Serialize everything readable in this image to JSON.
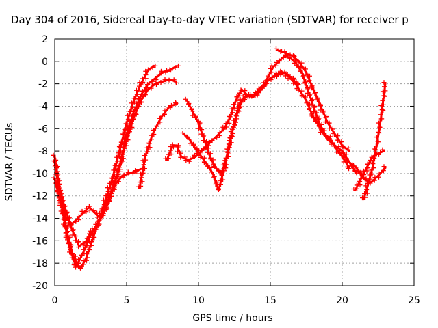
{
  "chart_data": {
    "type": "scatter",
    "title": "Day 304 of 2016, Sidereal Day-to-day VTEC variation (SDTVAR) for receiver p",
    "xlabel": "GPS time / hours",
    "ylabel": "SDTVAR / TECUs",
    "xlim": [
      0,
      25
    ],
    "ylim": [
      -20,
      2
    ],
    "xticks": [
      0,
      5,
      10,
      15,
      20,
      25
    ],
    "yticks": [
      -20,
      -18,
      -16,
      -14,
      -12,
      -10,
      -8,
      -6,
      -4,
      -2,
      0,
      2
    ],
    "grid": true,
    "marker": "plus",
    "color": "#ff0000",
    "series": [
      {
        "x": [
          0,
          0.3,
          0.6,
          0.9,
          1.2,
          1.5,
          1.8,
          2.2,
          2.6,
          3.0,
          3.5,
          4.0,
          4.5,
          5.0,
          5.5,
          6.0,
          6.5,
          6.9
        ],
        "values": [
          -8.5,
          -11.0,
          -13.5,
          -15.5,
          -17.0,
          -18.0,
          -18.5,
          -17.5,
          -16.0,
          -14.5,
          -12.5,
          -10.5,
          -8.0,
          -5.5,
          -3.5,
          -2.0,
          -0.8,
          -0.4
        ]
      },
      {
        "x": [
          0,
          0.4,
          0.8,
          1.2,
          1.6,
          2.0,
          2.4,
          2.8,
          3.2,
          3.6,
          4.0,
          4.5,
          5.0,
          5.5,
          6.0,
          6.5,
          7.0,
          7.5,
          8.0,
          8.4
        ],
        "values": [
          -10.5,
          -12.5,
          -14.0,
          -14.5,
          -14.0,
          -13.5,
          -13.0,
          -13.5,
          -14.0,
          -13.0,
          -11.5,
          -9.5,
          -7.0,
          -5.0,
          -3.5,
          -2.5,
          -2.0,
          -1.8,
          -1.6,
          -1.8
        ]
      },
      {
        "x": [
          0,
          0.5,
          1.0,
          1.5,
          2.0,
          2.5,
          3.0,
          3.5,
          4.0,
          4.5,
          5.0,
          5.5,
          6.0,
          6.5,
          7.0,
          7.5,
          8.0,
          8.5
        ],
        "values": [
          -9.0,
          -13.0,
          -16.5,
          -18.3,
          -17.0,
          -15.5,
          -14.5,
          -13.0,
          -11.5,
          -9.5,
          -6.5,
          -4.5,
          -3.0,
          -2.0,
          -1.5,
          -1.0,
          -0.8,
          -0.4
        ]
      },
      {
        "x": [
          0.2,
          0.7,
          1.2,
          1.7,
          2.2,
          2.7,
          3.2,
          3.7,
          4.2,
          4.7,
          5.2,
          5.6,
          6.0
        ],
        "values": [
          -11.0,
          -13.0,
          -15.0,
          -16.5,
          -16.0,
          -15.0,
          -14.0,
          -12.5,
          -11.0,
          -10.2,
          -10.0,
          -9.8,
          -9.6
        ]
      },
      {
        "x": [
          5.9,
          6.3,
          6.8,
          7.4,
          8.0,
          8.5
        ],
        "values": [
          -11.3,
          -8.5,
          -6.5,
          -5.0,
          -4.0,
          -3.8
        ]
      },
      {
        "x": [
          7.8,
          8.2,
          8.5,
          8.8,
          9.3,
          9.8,
          10.2,
          10.6,
          11.0,
          11.4,
          11.8,
          12.2,
          12.6,
          13.0,
          13.4,
          13.8,
          14.2,
          14.6,
          15.0,
          15.4,
          15.8,
          16.2,
          16.6,
          17.0
        ],
        "values": [
          -8.8,
          -7.5,
          -7.5,
          -8.5,
          -8.8,
          -8.5,
          -8.0,
          -7.5,
          -7.0,
          -6.5,
          -6.0,
          -5.0,
          -3.5,
          -2.5,
          -3.0,
          -3.2,
          -2.5,
          -2.0,
          -1.5,
          -1.2,
          -1.0,
          -1.2,
          -1.8,
          -2.0
        ]
      },
      {
        "x": [
          9.2,
          9.6,
          10.0,
          10.4,
          10.8,
          11.2,
          11.6,
          12.0,
          12.4,
          12.8,
          13.2,
          13.6,
          14.0,
          14.4,
          14.8,
          15.2,
          15.6,
          16.0,
          16.4,
          16.8,
          17.2,
          17.6,
          18.0,
          18.4,
          18.8,
          19.2,
          19.6,
          20.0,
          20.5
        ],
        "values": [
          -3.5,
          -4.5,
          -5.5,
          -7.0,
          -8.5,
          -9.5,
          -10.0,
          -8.5,
          -6.0,
          -4.0,
          -3.2,
          -3.0,
          -3.0,
          -2.5,
          -1.5,
          -0.5,
          0,
          0.5,
          0.3,
          -0.2,
          -1.0,
          -2.5,
          -4.0,
          -5.5,
          -6.5,
          -7.0,
          -7.8,
          -8.5,
          -9.5
        ]
      },
      {
        "x": [
          9.0,
          9.4,
          9.8,
          10.2,
          10.6,
          11.0,
          11.4,
          11.8,
          12.2,
          12.6,
          13.0,
          13.5,
          14.0,
          14.5,
          15.0,
          15.5,
          16.0,
          16.5,
          17.0,
          17.5,
          18.0,
          18.5,
          19.0,
          19.5,
          20.0,
          20.5,
          21.0
        ],
        "values": [
          -6.5,
          -7.0,
          -7.8,
          -8.5,
          -9.2,
          -10.0,
          -11.5,
          -9.5,
          -7.0,
          -5.0,
          -3.5,
          -3.0,
          -3.0,
          -2.2,
          -1.5,
          -1.2,
          -1.0,
          -1.5,
          -2.5,
          -3.5,
          -5.0,
          -6.0,
          -7.0,
          -7.5,
          -8.0,
          -9.0,
          -10.0
        ]
      },
      {
        "x": [
          15.5,
          16.0,
          16.5,
          17.0,
          17.5,
          18.0,
          18.5,
          19.0,
          19.5,
          20.0,
          20.5
        ],
        "values": [
          1.0,
          0.8,
          0.5,
          0,
          -1.0,
          -2.5,
          -4.0,
          -5.5,
          -6.5,
          -7.5,
          -8.0
        ]
      },
      {
        "x": [
          20.9,
          21.3,
          21.7,
          22.1,
          22.5,
          22.9
        ],
        "values": [
          -11.5,
          -10.5,
          -9.5,
          -8.5,
          -8.2,
          -8.0
        ]
      },
      {
        "x": [
          21.5,
          21.8,
          22.1,
          22.4,
          22.7,
          23.0
        ],
        "values": [
          -12.3,
          -11.0,
          -9.5,
          -7.5,
          -5.0,
          -2.0
        ]
      },
      {
        "x": [
          20.5,
          21.0,
          21.5,
          22.0,
          22.5,
          23.0
        ],
        "values": [
          -9.0,
          -9.5,
          -10.5,
          -10.8,
          -10.2,
          -9.5
        ]
      }
    ]
  }
}
